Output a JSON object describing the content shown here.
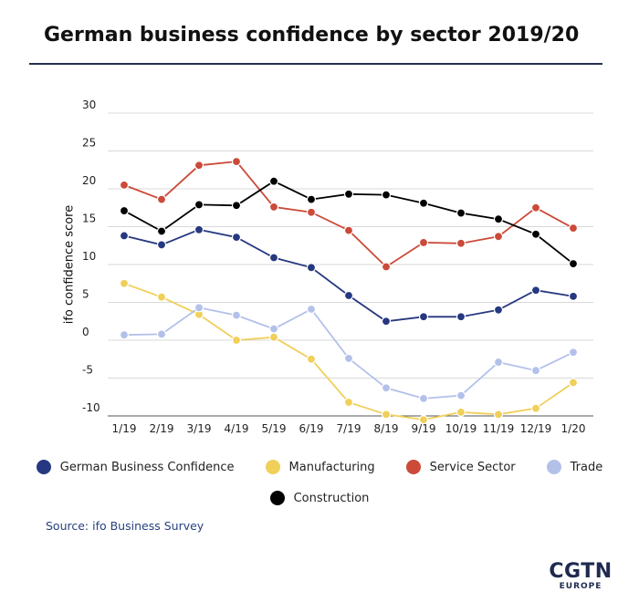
{
  "title": "German business confidence by sector 2019/20",
  "source": "Source: ifo Business Survey",
  "logo": {
    "main": "CGTN",
    "sub": "EUROPE"
  },
  "chart_data": {
    "type": "line",
    "title": "German business confidence by sector 2019/20",
    "ylabel": "ifo confidence score",
    "xlabel": "",
    "ylim": [
      -10,
      30
    ],
    "yticks": [
      30,
      25,
      20,
      15,
      10,
      5,
      0,
      -5,
      -10
    ],
    "ytick_labels": [
      "30",
      "25",
      "20",
      "15",
      "10",
      "5",
      "0",
      "-5",
      "-10"
    ],
    "grid": true,
    "legend_position": "bottom",
    "categories": [
      "1/19",
      "2/19",
      "3/19",
      "4/19",
      "5/19",
      "6/19",
      "7/19",
      "8/19",
      "9/19",
      "10/19",
      "11/19",
      "12/19",
      "1/20"
    ],
    "series": [
      {
        "name": "German Business Confidence",
        "color": "#26387f",
        "values": [
          13.8,
          12.6,
          14.6,
          13.6,
          10.9,
          9.6,
          5.9,
          2.5,
          3.1,
          3.1,
          4.0,
          6.6,
          5.8
        ]
      },
      {
        "name": "Manufacturing",
        "color": "#f0cf5a",
        "values": [
          7.5,
          5.7,
          3.4,
          0.0,
          0.4,
          -2.5,
          -8.2,
          -9.8,
          -10.5,
          -9.5,
          -9.8,
          -9.0,
          -5.6
        ]
      },
      {
        "name": "Service Sector",
        "color": "#cb4a38",
        "values": [
          20.5,
          18.6,
          23.1,
          23.6,
          17.6,
          16.9,
          14.5,
          9.7,
          12.9,
          12.8,
          13.7,
          17.5,
          14.8
        ]
      },
      {
        "name": "Trade",
        "color": "#b3c1ea",
        "values": [
          0.7,
          0.8,
          4.3,
          3.3,
          1.5,
          4.1,
          -2.4,
          -6.3,
          -7.7,
          -7.3,
          -2.9,
          -4.0,
          -1.6
        ]
      },
      {
        "name": "Construction",
        "color": "#000000",
        "values": [
          17.1,
          14.4,
          17.9,
          17.8,
          21.0,
          18.6,
          19.3,
          19.2,
          18.1,
          16.8,
          16.0,
          14.0,
          10.1
        ]
      }
    ]
  }
}
